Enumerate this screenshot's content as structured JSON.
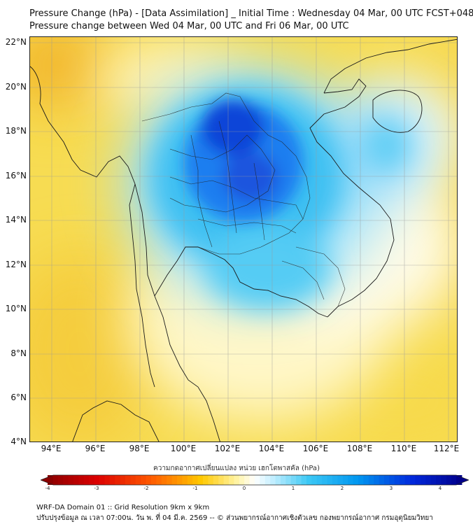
{
  "title_line1": "Pressure Change (hPa) - [Data Assimilation] _ Initial Time : Wednesday 04 Mar, 00 UTC FCST+048",
  "title_line2": "Pressure change between Wed 04 Mar, 00 UTC and Fri 06 Mar, 00 UTC",
  "lat_labels": [
    "22°N",
    "20°N",
    "18°N",
    "16°N",
    "14°N",
    "12°N",
    "10°N",
    "8°N",
    "6°N",
    "4°N"
  ],
  "lon_labels": [
    "94°E",
    "96°E",
    "98°E",
    "100°E",
    "102°E",
    "104°E",
    "106°E",
    "108°E",
    "110°E",
    "112°E"
  ],
  "colorbar": {
    "title": "ความกดอากาศเปลี่ยนแปลง หน่วย เฮกโตพาสคัล (hPa)",
    "ticks": [
      "-4",
      "-3",
      "-2",
      "-1",
      "0",
      "1",
      "2",
      "3",
      "4"
    ],
    "min": -4,
    "max": 4,
    "neg_color": "#8b0000",
    "mid_color": "#ffffff",
    "pos_color": "#00008b"
  },
  "footer_line1": "WRF-DA Domain 01 :: Grid Resolution 9km x 9km",
  "footer_line2": "ปรับปรุงข้อมูล ณ เวลา 07:00น. วัน พ. ที่ 04 มี.ค. 2569 -- © ส่วนพยากรณ์อากาศเชิงตัวเลข กองพยากรณ์อากาศ กรมอุตุนิยมวิทยา"
}
